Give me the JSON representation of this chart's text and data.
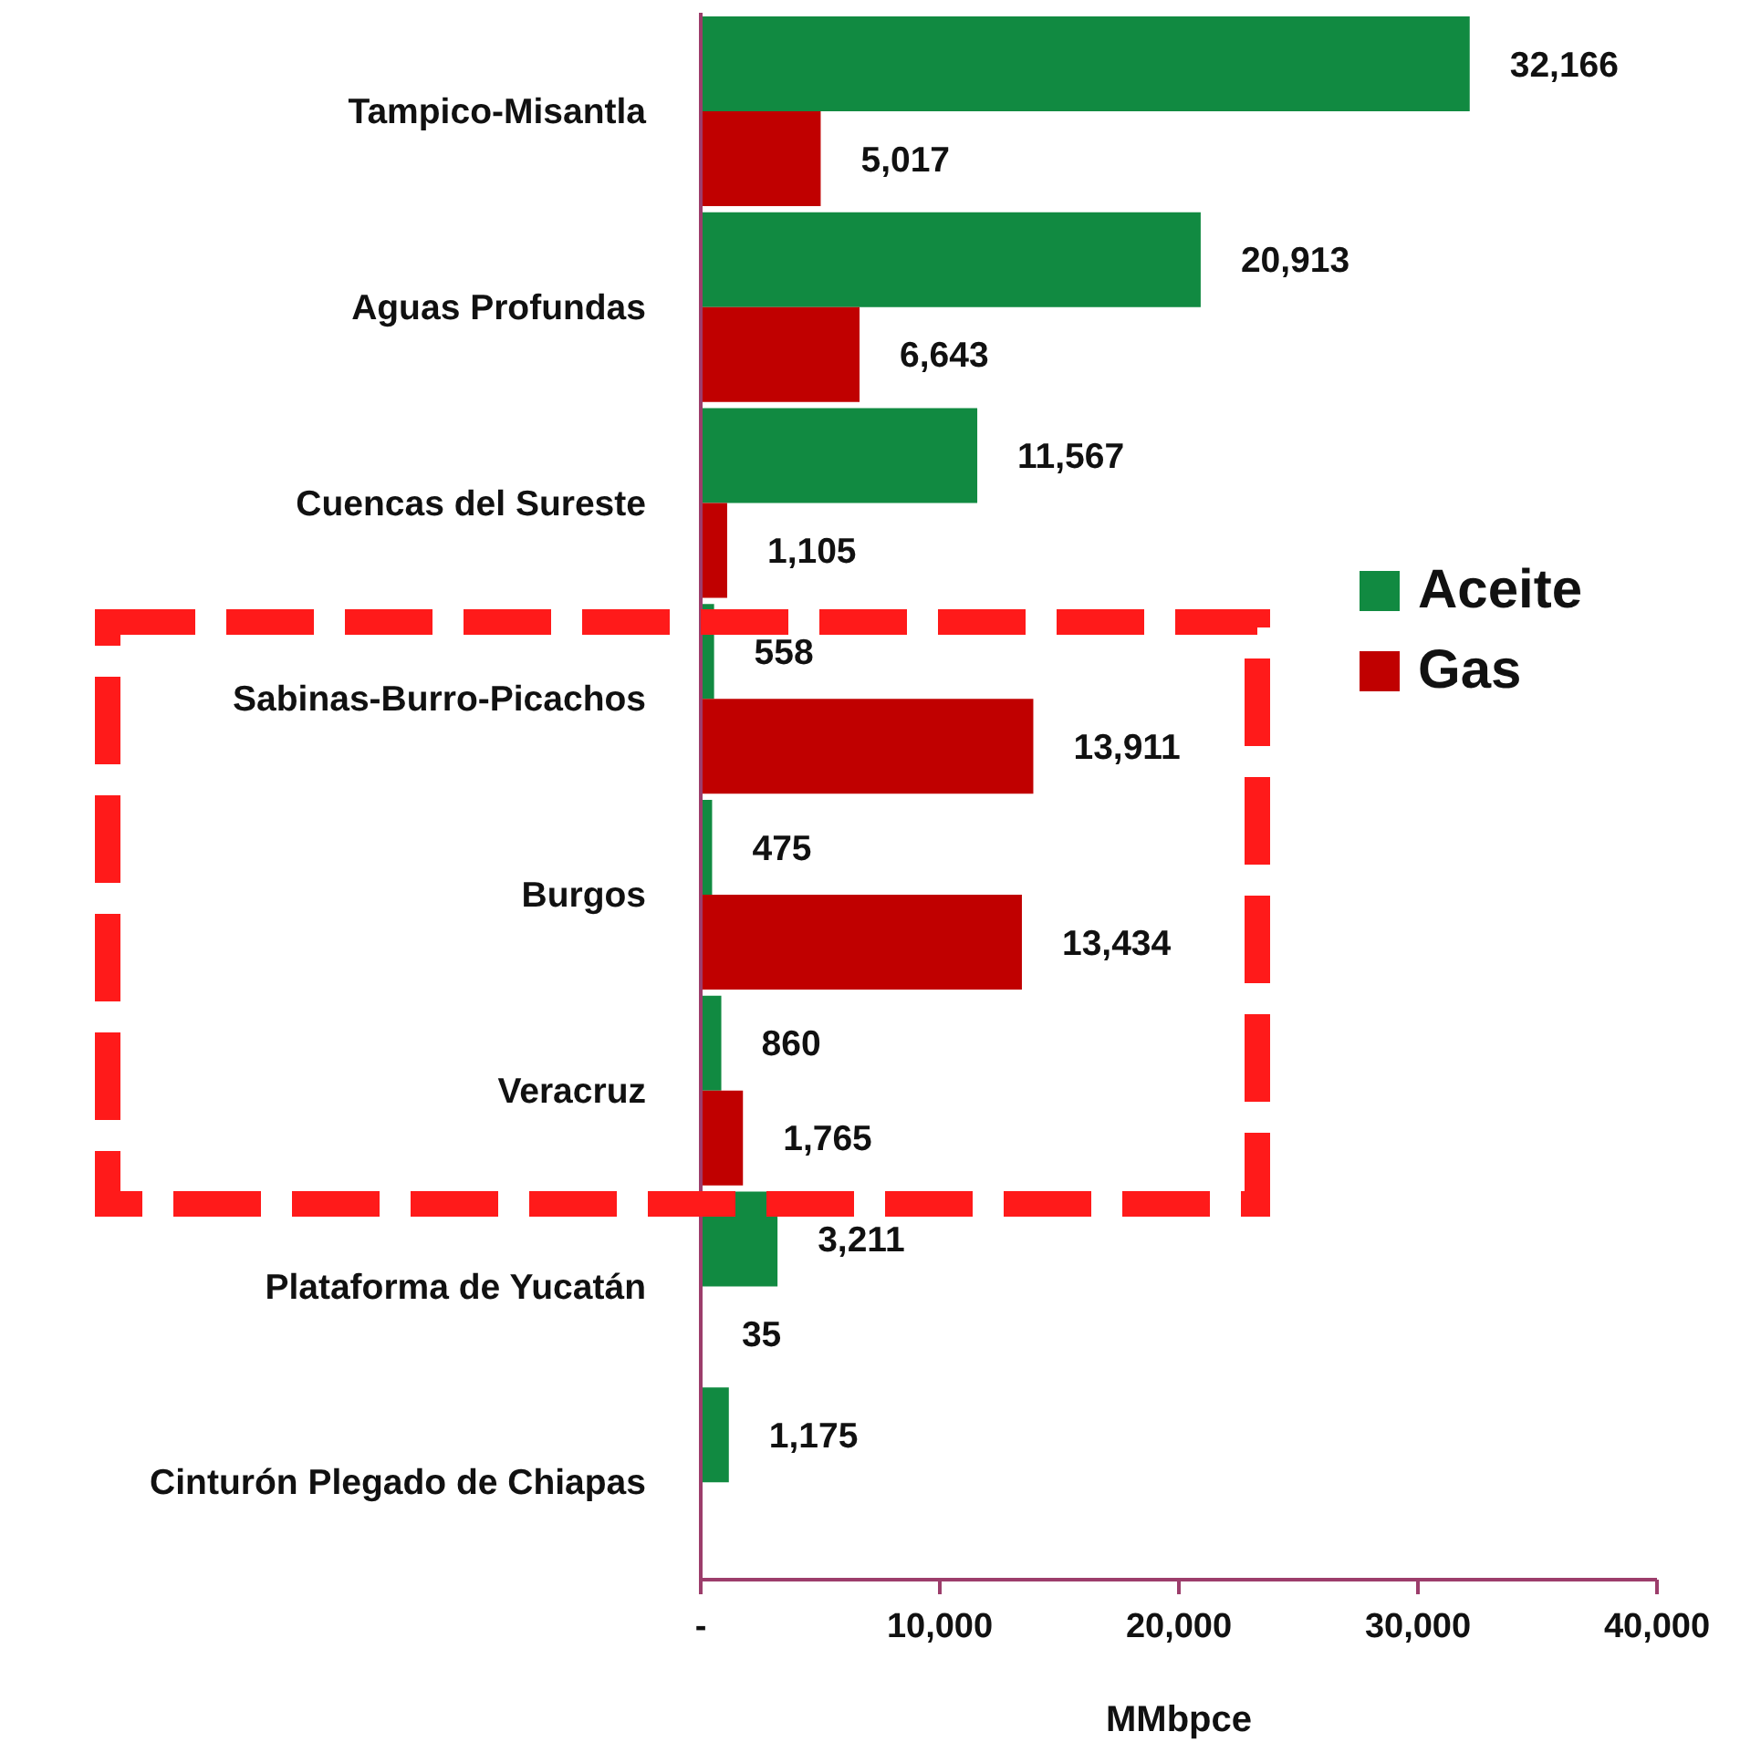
{
  "chart_data": {
    "type": "bar",
    "orientation": "horizontal",
    "categories": [
      "Tampico-Misantla",
      "Aguas Profundas",
      "Cuencas del Sureste",
      "Sabinas-Burro-Picachos",
      "Burgos",
      "Veracruz",
      "Plataforma de Yucatán",
      "Cinturón Plegado de Chiapas"
    ],
    "series": [
      {
        "name": "Aceite",
        "color": "#118a41",
        "values": [
          32166,
          20913,
          11567,
          558,
          475,
          860,
          3211,
          1175
        ],
        "value_labels": [
          "32,166",
          "20,913",
          "11,567",
          "558",
          "475",
          "860",
          "3,211",
          "1,175"
        ]
      },
      {
        "name": "Gas",
        "color": "#c00000",
        "values": [
          5017,
          6643,
          1105,
          13911,
          13434,
          1765,
          35,
          null
        ],
        "value_labels": [
          "5,017",
          "6,643",
          "1,105",
          "13,911",
          "13,434",
          "1,765",
          "35",
          null
        ]
      }
    ],
    "xlabel": "MMbpce",
    "xlim": [
      0,
      40000
    ],
    "xticks": [
      {
        "value": 0,
        "label": "-"
      },
      {
        "value": 10000,
        "label": "10,000"
      },
      {
        "value": 20000,
        "label": "20,000"
      },
      {
        "value": 30000,
        "label": "30,000"
      },
      {
        "value": 40000,
        "label": "40,000"
      }
    ],
    "legend": "right"
  }
}
